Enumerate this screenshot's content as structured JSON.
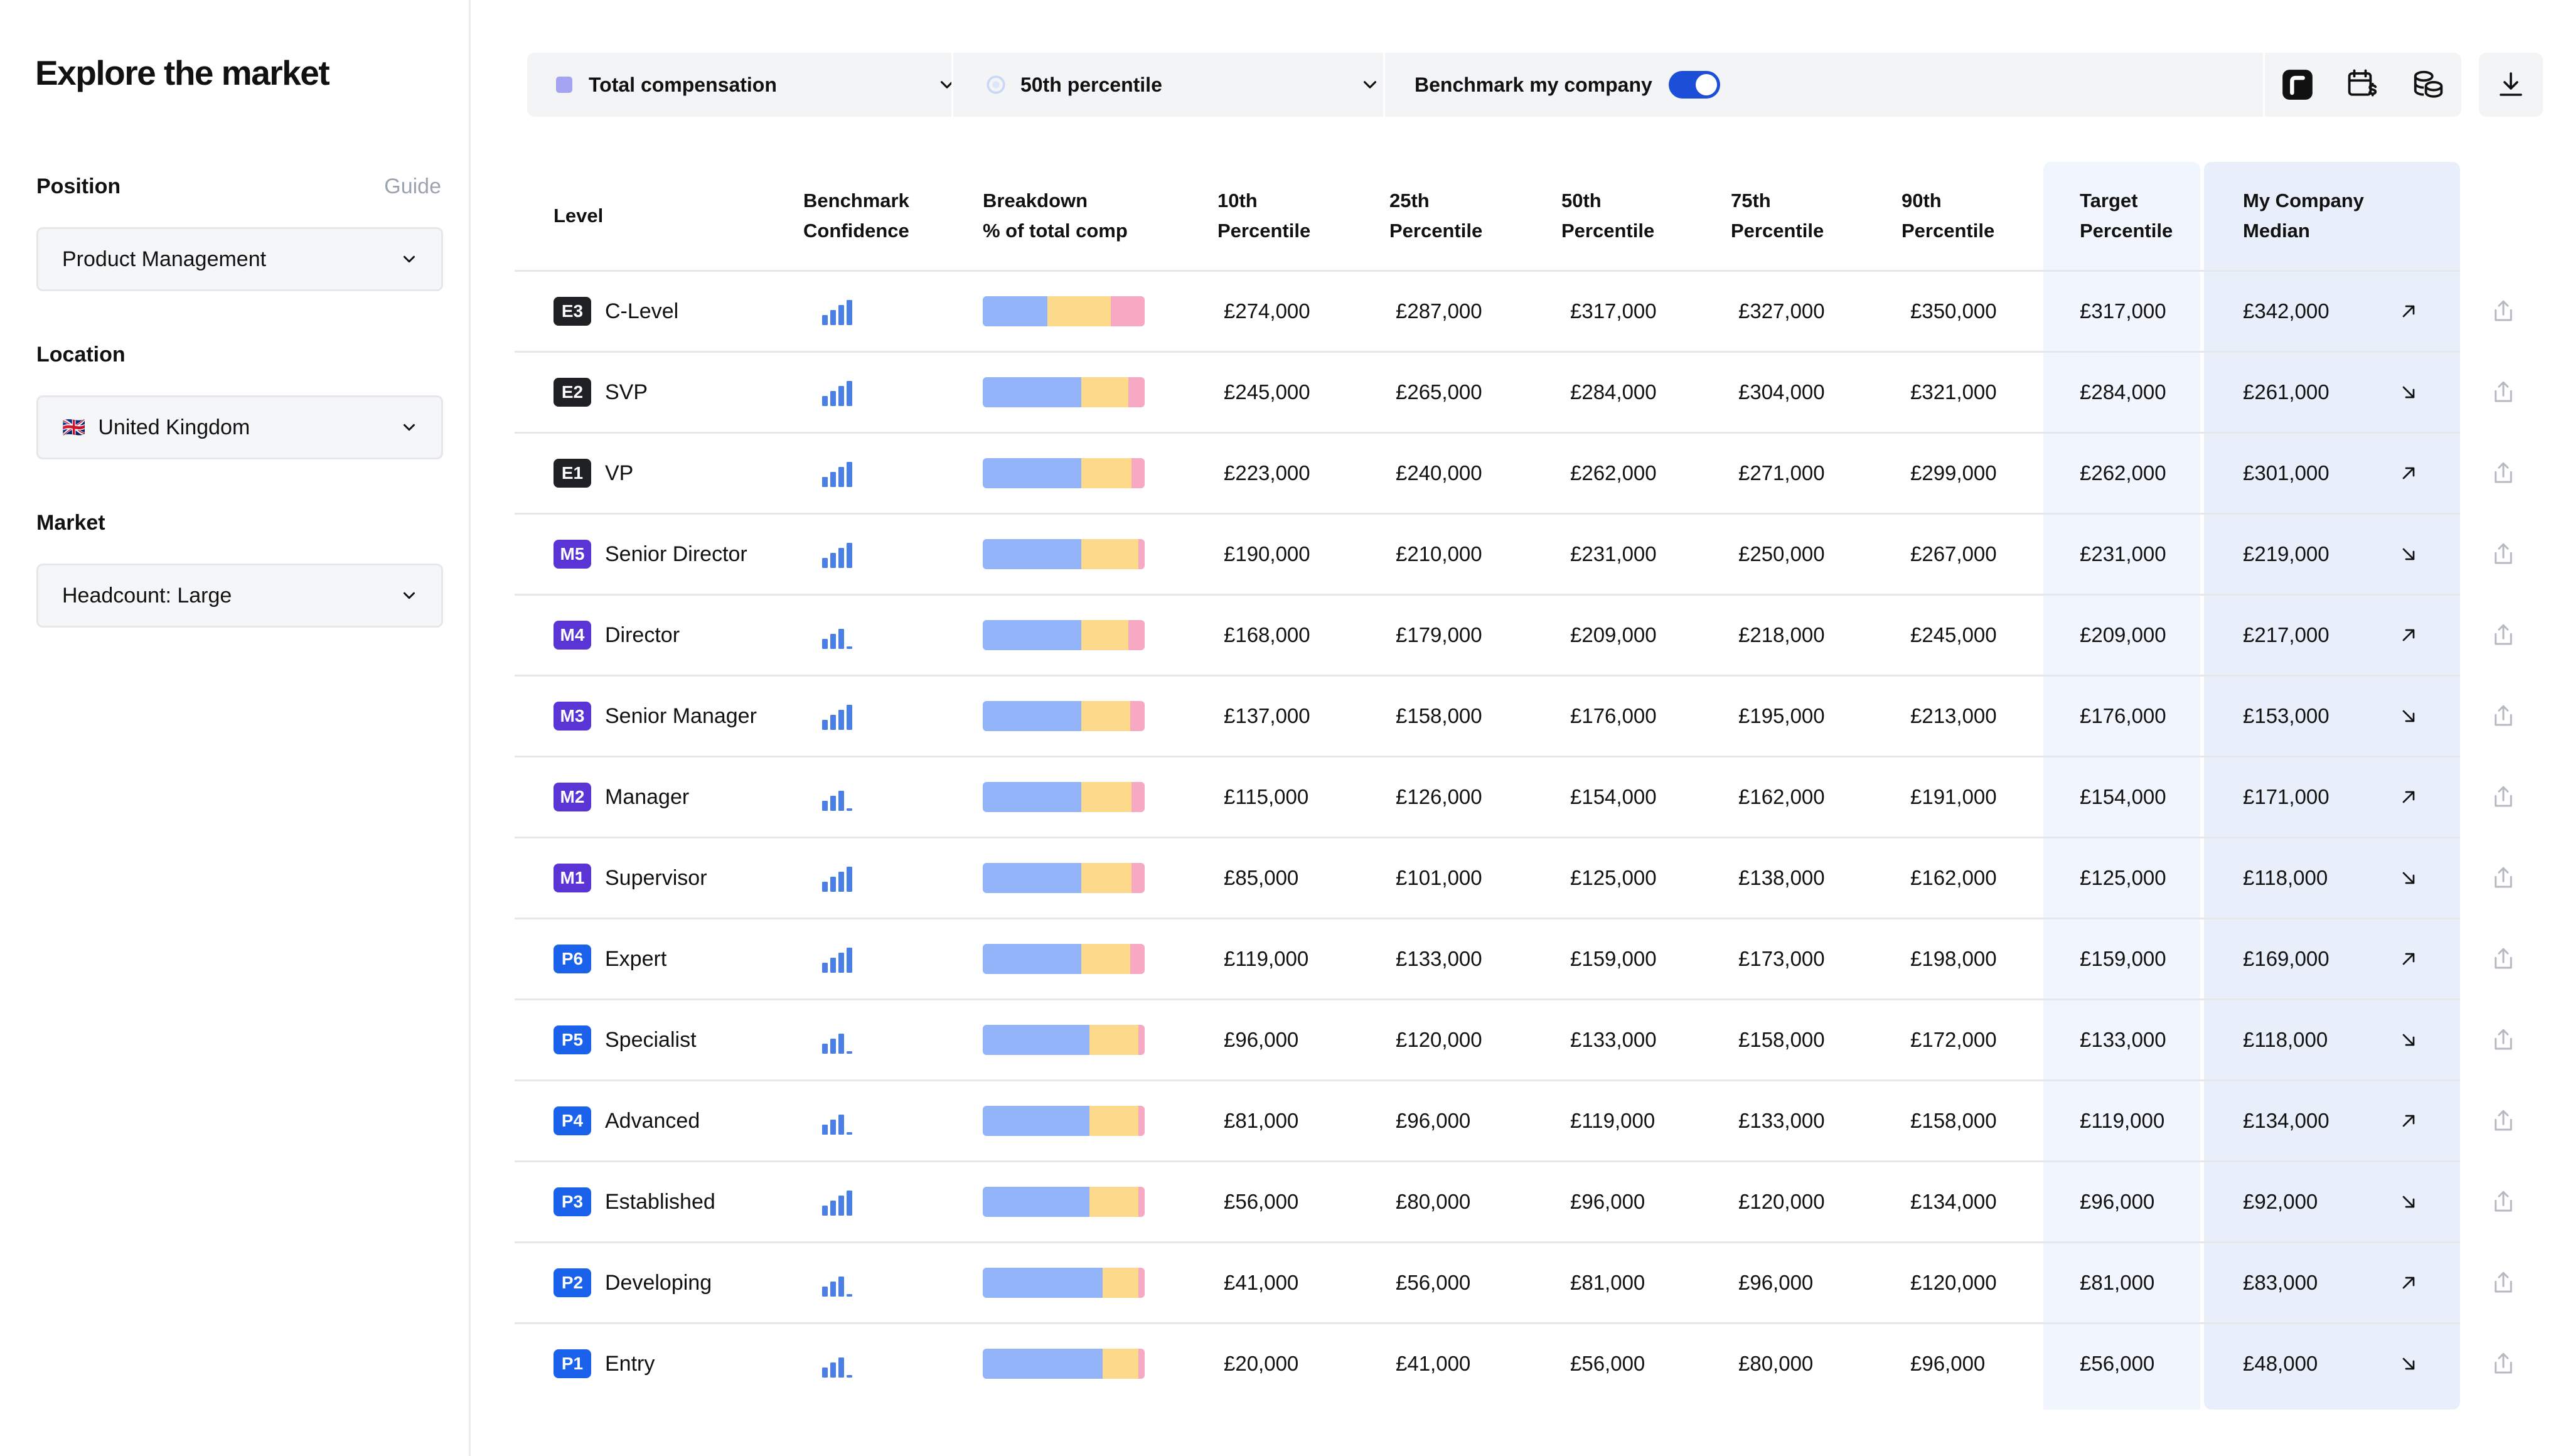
{
  "sidebar": {
    "title": "Explore the market",
    "position": {
      "label": "Position",
      "guide": "Guide",
      "value": "Product Management"
    },
    "location": {
      "label": "Location",
      "flag": "🇬🇧",
      "value": "United Kingdom"
    },
    "market": {
      "label": "Market",
      "value": "Headcount: Large"
    }
  },
  "toolbar": {
    "compensation": "Total compensation",
    "percentile": "50th percentile",
    "benchmark_label": "Benchmark my company",
    "benchmark_on": true,
    "icons": [
      "brand-logo-icon",
      "calendar-dollar-icon",
      "coins-icon"
    ],
    "download": "download-icon"
  },
  "colors": {
    "base": "#93b4f8",
    "bonus": "#fcd98b",
    "equity": "#f7a8c2",
    "exec_badge": "#1f2125",
    "manager_badge": "#5b34d6",
    "professional_badge": "#1a62eb",
    "toggle": "#1d4ed8"
  },
  "table": {
    "headers": {
      "level": "Level",
      "confidence": "Benchmark\nConfidence",
      "breakdown": "Breakdown\n% of total comp",
      "p10": "10th\nPercentile",
      "p25": "25th\nPercentile",
      "p50": "50th\nPercentile",
      "p75": "75th\nPercentile",
      "p90": "90th\nPercentile",
      "target": "Target\nPercentile",
      "company": "My Company\nMedian"
    },
    "rows": [
      {
        "code": "E3",
        "name": "C-Level",
        "track": "exec",
        "confidence": 4,
        "breakdown": [
          40,
          39,
          21
        ],
        "p10": "£274,000",
        "p25": "£287,000",
        "p50": "£317,000",
        "p75": "£327,000",
        "p90": "£350,000",
        "target": "£317,000",
        "company": "£342,000",
        "trend": "up"
      },
      {
        "code": "E2",
        "name": "SVP",
        "track": "exec",
        "confidence": 4,
        "breakdown": [
          61,
          29,
          10
        ],
        "p10": "£245,000",
        "p25": "£265,000",
        "p50": "£284,000",
        "p75": "£304,000",
        "p90": "£321,000",
        "target": "£284,000",
        "company": "£261,000",
        "trend": "down"
      },
      {
        "code": "E1",
        "name": "VP",
        "track": "exec",
        "confidence": 4,
        "breakdown": [
          61,
          31,
          8
        ],
        "p10": "£223,000",
        "p25": "£240,000",
        "p50": "£262,000",
        "p75": "£271,000",
        "p90": "£299,000",
        "target": "£262,000",
        "company": "£301,000",
        "trend": "up"
      },
      {
        "code": "M5",
        "name": "Senior Director",
        "track": "manager",
        "confidence": 4,
        "breakdown": [
          61,
          35,
          4
        ],
        "p10": "£190,000",
        "p25": "£210,000",
        "p50": "£231,000",
        "p75": "£250,000",
        "p90": "£267,000",
        "target": "£231,000",
        "company": "£219,000",
        "trend": "down"
      },
      {
        "code": "M4",
        "name": "Director",
        "track": "manager",
        "confidence": 3,
        "breakdown": [
          61,
          29,
          10
        ],
        "p10": "£168,000",
        "p25": "£179,000",
        "p50": "£209,000",
        "p75": "£218,000",
        "p90": "£245,000",
        "target": "£209,000",
        "company": "£217,000",
        "trend": "up"
      },
      {
        "code": "M3",
        "name": "Senior Manager",
        "track": "manager",
        "confidence": 4,
        "breakdown": [
          61,
          30,
          9
        ],
        "p10": "£137,000",
        "p25": "£158,000",
        "p50": "£176,000",
        "p75": "£195,000",
        "p90": "£213,000",
        "target": "£176,000",
        "company": "£153,000",
        "trend": "down"
      },
      {
        "code": "M2",
        "name": "Manager",
        "track": "manager",
        "confidence": 3,
        "breakdown": [
          61,
          31,
          8
        ],
        "p10": "£115,000",
        "p25": "£126,000",
        "p50": "£154,000",
        "p75": "£162,000",
        "p90": "£191,000",
        "target": "£154,000",
        "company": "£171,000",
        "trend": "up"
      },
      {
        "code": "M1",
        "name": "Supervisor",
        "track": "manager",
        "confidence": 4,
        "breakdown": [
          61,
          31,
          8
        ],
        "p10": "£85,000",
        "p25": "£101,000",
        "p50": "£125,000",
        "p75": "£138,000",
        "p90": "£162,000",
        "target": "£125,000",
        "company": "£118,000",
        "trend": "down"
      },
      {
        "code": "P6",
        "name": "Expert",
        "track": "professional",
        "confidence": 4,
        "breakdown": [
          61,
          30,
          9
        ],
        "p10": "£119,000",
        "p25": "£133,000",
        "p50": "£159,000",
        "p75": "£173,000",
        "p90": "£198,000",
        "target": "£159,000",
        "company": "£169,000",
        "trend": "up"
      },
      {
        "code": "P5",
        "name": "Specialist",
        "track": "professional",
        "confidence": 3,
        "breakdown": [
          66,
          30,
          4
        ],
        "p10": "£96,000",
        "p25": "£120,000",
        "p50": "£133,000",
        "p75": "£158,000",
        "p90": "£172,000",
        "target": "£133,000",
        "company": "£118,000",
        "trend": "down"
      },
      {
        "code": "P4",
        "name": "Advanced",
        "track": "professional",
        "confidence": 3,
        "breakdown": [
          66,
          30,
          4
        ],
        "p10": "£81,000",
        "p25": "£96,000",
        "p50": "£119,000",
        "p75": "£133,000",
        "p90": "£158,000",
        "target": "£119,000",
        "company": "£134,000",
        "trend": "up"
      },
      {
        "code": "P3",
        "name": "Established",
        "track": "professional",
        "confidence": 4,
        "breakdown": [
          66,
          30,
          4
        ],
        "p10": "£56,000",
        "p25": "£80,000",
        "p50": "£96,000",
        "p75": "£120,000",
        "p90": "£134,000",
        "target": "£96,000",
        "company": "£92,000",
        "trend": "down"
      },
      {
        "code": "P2",
        "name": "Developing",
        "track": "professional",
        "confidence": 3,
        "breakdown": [
          74,
          22,
          4
        ],
        "p10": "£41,000",
        "p25": "£56,000",
        "p50": "£81,000",
        "p75": "£96,000",
        "p90": "£120,000",
        "target": "£81,000",
        "company": "£83,000",
        "trend": "up"
      },
      {
        "code": "P1",
        "name": "Entry",
        "track": "professional",
        "confidence": 3,
        "breakdown": [
          74,
          22,
          4
        ],
        "p10": "£20,000",
        "p25": "£41,000",
        "p50": "£56,000",
        "p75": "£80,000",
        "p90": "£96,000",
        "target": "£56,000",
        "company": "£48,000",
        "trend": "down"
      }
    ]
  }
}
